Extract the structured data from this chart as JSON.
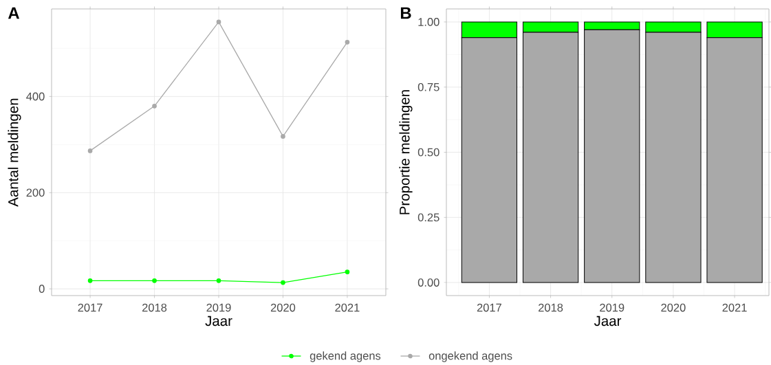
{
  "chart_data": [
    {
      "type": "line",
      "title": "A",
      "xlabel": "Jaar",
      "ylabel": "Aantal meldingen",
      "categories": [
        "2017",
        "2018",
        "2019",
        "2020",
        "2021"
      ],
      "series": [
        {
          "name": "gekend agens",
          "color": "#00ff00",
          "values": [
            17,
            17,
            17,
            13,
            35
          ]
        },
        {
          "name": "ongekend agens",
          "color": "#a9a9a9",
          "values": [
            287,
            380,
            555,
            317,
            513
          ]
        }
      ],
      "ylim": [
        -14,
        582
      ],
      "yticks": [
        0,
        200,
        400
      ],
      "grid": true,
      "legend": "bottom",
      "marker": "circle"
    },
    {
      "type": "bar",
      "title": "B",
      "xlabel": "Jaar",
      "ylabel": "Proportie meldingen",
      "categories": [
        "2017",
        "2018",
        "2019",
        "2020",
        "2021"
      ],
      "stacked": true,
      "series": [
        {
          "color": "#a9a9a9",
          "values": [
            0.94,
            0.96,
            0.97,
            0.96,
            0.94
          ]
        },
        {
          "color": "#00ff00",
          "values": [
            0.06,
            0.04,
            0.03,
            0.04,
            0.06
          ]
        }
      ],
      "ylim": [
        -0.05,
        1.05
      ],
      "yticks": [
        {
          "value": 0,
          "label": "0.00"
        },
        {
          "value": 0.25,
          "label": "0.25"
        },
        {
          "value": 0.5,
          "label": "0.50"
        },
        {
          "value": 0.75,
          "label": "0.75"
        },
        {
          "value": 1,
          "label": "1.00"
        }
      ],
      "grid": true
    }
  ]
}
